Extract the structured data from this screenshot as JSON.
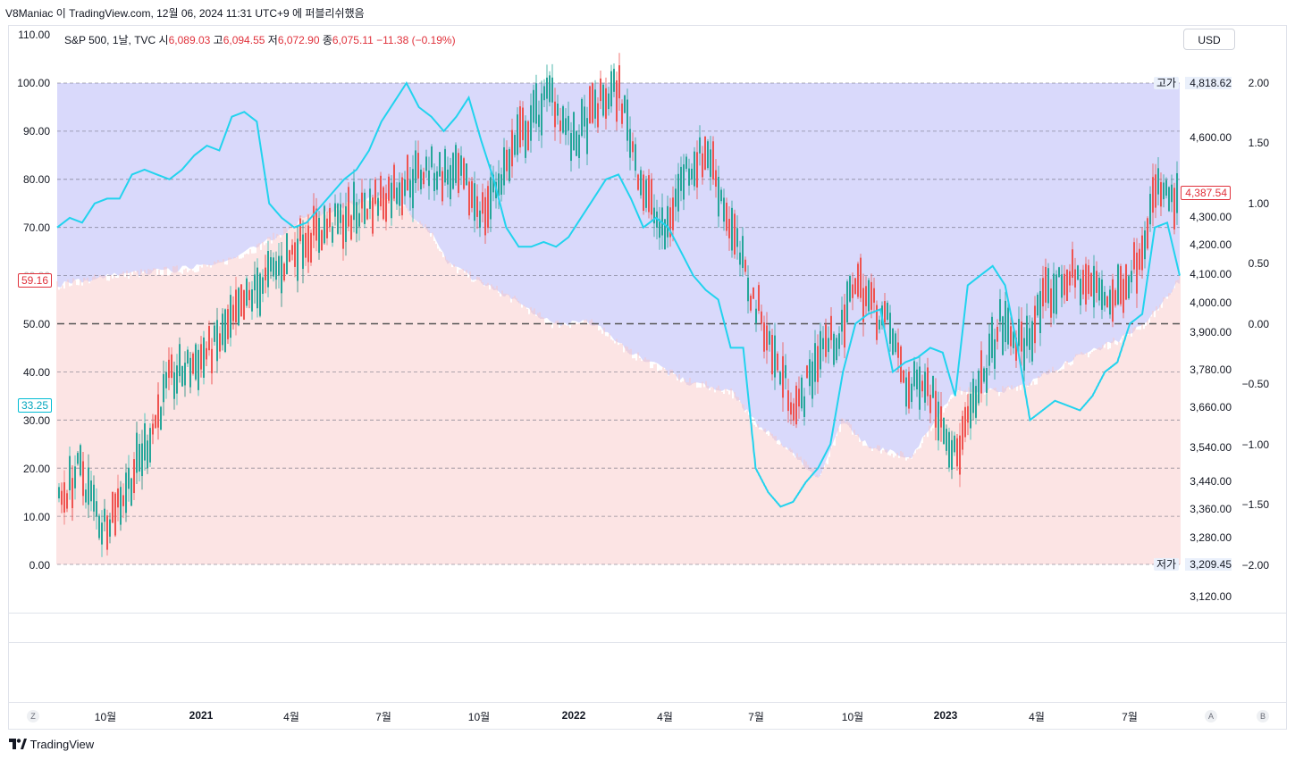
{
  "header": {
    "text": "V8Maniac 이 TradingView.com, 12월 06, 2024 11:31 UTC+9 에 퍼블리쉬했음"
  },
  "legend": {
    "symbol": "S&P 500, 1날, TVC",
    "open_label": "시",
    "open": "6,089.03",
    "high_label": "고",
    "high": "6,094.55",
    "low_label": "저",
    "low": "6,072.90",
    "close_label": "종",
    "close": "6,075.11",
    "change": "−11.38 (−0.19%)"
  },
  "currency_button": "USD",
  "left_axis": [
    "110.00",
    "100.00",
    "90.00",
    "80.00",
    "70.00",
    "60.00",
    "50.00",
    "40.00",
    "30.00",
    "20.00",
    "10.00",
    "0.00"
  ],
  "left_markers": {
    "upper": "59.16",
    "lower": "33.25"
  },
  "price_axis": [
    "4,818.62",
    "4,600.00",
    "4,387.54",
    "4,300.00",
    "4,200.00",
    "4,100.00",
    "4,000.00",
    "3,900.00",
    "3,780.00",
    "3,660.00",
    "3,540.00",
    "3,440.00",
    "3,360.00",
    "3,280.00",
    "3,209.45",
    "3,120.00"
  ],
  "price_labels": {
    "high_tag": "고가",
    "low_tag": "저가"
  },
  "osc_axis": [
    "2.00",
    "1.50",
    "1.00",
    "0.50",
    "0.00",
    "−0.50",
    "−1.00",
    "−1.50",
    "−2.00"
  ],
  "time_axis": [
    {
      "label": "10월",
      "bold": false
    },
    {
      "label": "2021",
      "bold": true
    },
    {
      "label": "4월",
      "bold": false
    },
    {
      "label": "7월",
      "bold": false
    },
    {
      "label": "10월",
      "bold": false
    },
    {
      "label": "2022",
      "bold": true
    },
    {
      "label": "4월",
      "bold": false
    },
    {
      "label": "7월",
      "bold": false
    },
    {
      "label": "10월",
      "bold": false
    },
    {
      "label": "2023",
      "bold": true
    },
    {
      "label": "4월",
      "bold": false
    },
    {
      "label": "7월",
      "bold": false
    }
  ],
  "bottom_buttons": {
    "z": "Z",
    "a": "A",
    "b": "B"
  },
  "brand": {
    "logo_text": "TradingView"
  },
  "colors": {
    "up": "#26a69a",
    "down": "#ef5350",
    "cyan": "#22d3ee",
    "band": "#d7d7fb",
    "volume": "#f8c8c8",
    "markerRed": "#e0313b",
    "markerCyan": "#00bcd4"
  },
  "chart_data": {
    "type": "line",
    "series": [
      {
        "name": "",
        "values": [
          70,
          72,
          71,
          75,
          76,
          76,
          81,
          82,
          81,
          80,
          82,
          85,
          87,
          86,
          93,
          94,
          92,
          75,
          72,
          70,
          71,
          74,
          77,
          80,
          82,
          86,
          92,
          96,
          100,
          95,
          93,
          90,
          93,
          97,
          88,
          80,
          70,
          66,
          66,
          67,
          66,
          68,
          72,
          76,
          80,
          81,
          76,
          70,
          72,
          70,
          65,
          60,
          57,
          55,
          45,
          45,
          20,
          15,
          12,
          13,
          17,
          20,
          25,
          40,
          50,
          52,
          53,
          40,
          42,
          43,
          45,
          44,
          35,
          58,
          60,
          62,
          58,
          45,
          30,
          32,
          34,
          33,
          32,
          35,
          40,
          42,
          50,
          52,
          70,
          71,
          60
        ]
      }
    ]
  }
}
